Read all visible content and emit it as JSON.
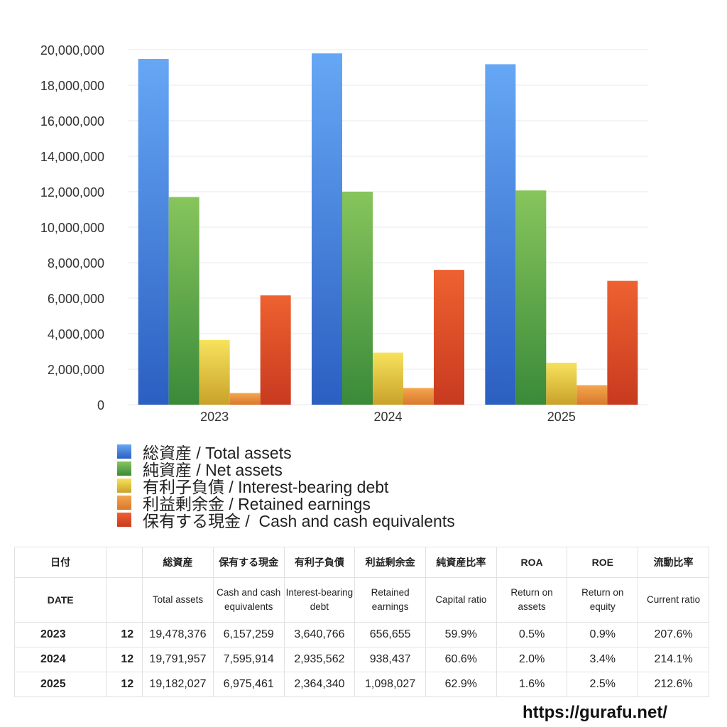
{
  "chart_data": {
    "type": "bar",
    "categories": [
      "2023",
      "2024",
      "2025"
    ],
    "series": [
      {
        "name": "総資産 / Total assets",
        "values": [
          19478376,
          19791957,
          19182027
        ],
        "color_top": "#66a7f5",
        "color_bottom": "#2b5fc1"
      },
      {
        "name": "純資産 / Net assets",
        "values": [
          11700000,
          12000000,
          12070000
        ],
        "color_top": "#87c55c",
        "color_bottom": "#3a8a3a"
      },
      {
        "name": "有利子負債 / Interest-bearing debt",
        "values": [
          3640766,
          2935562,
          2364340
        ],
        "color_top": "#f7e25c",
        "color_bottom": "#c9a22a"
      },
      {
        "name": "利益剰余金 / Retained earnings",
        "values": [
          656655,
          938437,
          1098027
        ],
        "color_top": "#f4a64e",
        "color_bottom": "#d9782c"
      },
      {
        "name": "保有する現金 /  Cash and cash equivalents",
        "values": [
          6157259,
          7595914,
          6975461
        ],
        "color_top": "#ee6130",
        "color_bottom": "#c83a1f"
      }
    ],
    "yticks": [
      "0",
      "2,000,000",
      "4,000,000",
      "6,000,000",
      "8,000,000",
      "10,000,000",
      "12,000,000",
      "14,000,000",
      "16,000,000",
      "18,000,000",
      "20,000,000"
    ],
    "ylim": [
      0,
      20000000
    ],
    "grid": true,
    "legend_position": "bottom-left"
  },
  "table": {
    "head_jp": [
      "日付",
      "",
      "総資産",
      "保有する現金",
      "有利子負債",
      "利益剰余金",
      "純資産比率",
      "ROA",
      "ROE",
      "流動比率"
    ],
    "head_en": [
      "DATE",
      "",
      "Total assets",
      "Cash and cash equivalents",
      "Interest-bearing debt",
      "Retained earnings",
      "Capital ratio",
      "Return on assets",
      "Return on equity",
      "Current ratio"
    ],
    "rows": [
      [
        "2023",
        "12",
        "19,478,376",
        "6,157,259",
        "3,640,766",
        "656,655",
        "59.9%",
        "0.5%",
        "0.9%",
        "207.6%"
      ],
      [
        "2024",
        "12",
        "19,791,957",
        "7,595,914",
        "2,935,562",
        "938,437",
        "60.6%",
        "2.0%",
        "3.4%",
        "214.1%"
      ],
      [
        "2025",
        "12",
        "19,182,027",
        "6,975,461",
        "2,364,340",
        "1,098,027",
        "62.9%",
        "1.6%",
        "2.5%",
        "212.6%"
      ]
    ]
  },
  "footer": {
    "url": "https://gurafu.net/"
  }
}
